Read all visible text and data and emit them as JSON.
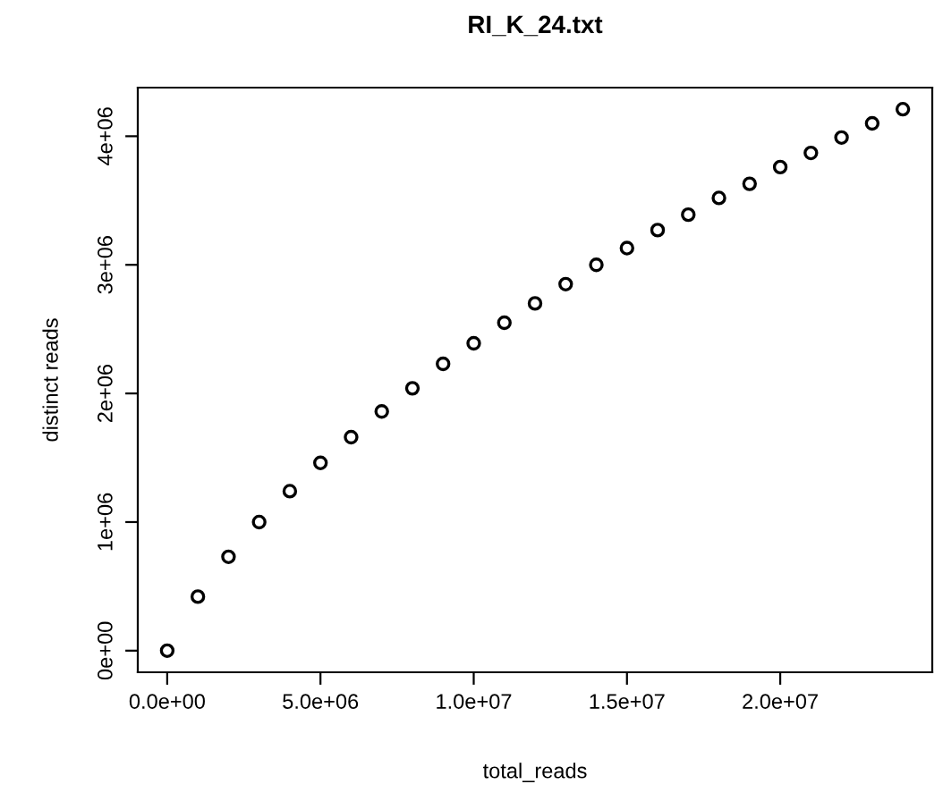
{
  "chart_data": {
    "type": "scatter",
    "title": "RI_K_24.txt",
    "xlabel": "total_reads",
    "ylabel": "distinct reads",
    "x": [
      0,
      1000000,
      2000000,
      3000000,
      4000000,
      5000000,
      6000000,
      7000000,
      8000000,
      9000000,
      10000000,
      11000000,
      12000000,
      13000000,
      14000000,
      15000000,
      16000000,
      17000000,
      18000000,
      19000000,
      20000000,
      21000000,
      22000000,
      23000000,
      24000000
    ],
    "series": [
      {
        "color": "#000000",
        "values": [
          0,
          420000,
          730000,
          1000000,
          1240000,
          1460000,
          1660000,
          1860000,
          2040000,
          2230000,
          2390000,
          2550000,
          2700000,
          2850000,
          3000000,
          3130000,
          3270000,
          3390000,
          3520000,
          3630000,
          3760000,
          3870000,
          3990000,
          4100000,
          4210000
        ]
      }
    ],
    "xlim": [
      -960000,
      24960000
    ],
    "ylim": [
      -168000,
      4378000
    ],
    "xticks": [
      {
        "value": 0,
        "label": "0.0e+00"
      },
      {
        "value": 5000000,
        "label": "5.0e+06"
      },
      {
        "value": 10000000,
        "label": "1.0e+07"
      },
      {
        "value": 15000000,
        "label": "1.5e+07"
      },
      {
        "value": 20000000,
        "label": "2.0e+07"
      }
    ],
    "yticks": [
      {
        "value": 0,
        "label": "0e+00"
      },
      {
        "value": 1000000,
        "label": "1e+06"
      },
      {
        "value": 2000000,
        "label": "2e+06"
      },
      {
        "value": 3000000,
        "label": "3e+06"
      },
      {
        "value": 4000000,
        "label": "4e+06"
      }
    ],
    "marker": "circle",
    "grid": false,
    "legend": false
  }
}
